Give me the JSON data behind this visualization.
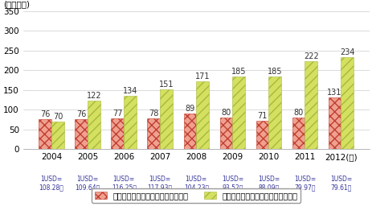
{
  "years": [
    "2004",
    "2005",
    "2006",
    "2007",
    "2008",
    "2009",
    "2010",
    "2011",
    "2012(年)"
  ],
  "japan_values": [
    76,
    76,
    77,
    78,
    89,
    80,
    71,
    80,
    131
  ],
  "korea_values": [
    70,
    122,
    134,
    151,
    171,
    185,
    185,
    222,
    234
  ],
  "exchange_rates": [
    "1USD=\n108.28円",
    "1USD=\n109.64円",
    "1USD=\n116.25円",
    "1USD=\n117.93円",
    "1USD=\n104.23円",
    "1USD=\n93.52円",
    "1USD=\n88.09円",
    "1USD=\n79.97円",
    "1USD=\n79.61円"
  ],
  "japan_color": "#e8756a",
  "korea_color": "#c8d45a",
  "japan_hatch": "///",
  "ylabel": "(百万ドル)",
  "ylim": [
    0,
    350
  ],
  "yticks": [
    0,
    50,
    100,
    150,
    200,
    250,
    300,
    350
  ],
  "legend_japan": "日本の放送コンテンツの海外輸出額",
  "legend_korea": "韓国の放送コンテンツの海外輸出額",
  "bar_width": 0.35,
  "title_fontsize": 9,
  "tick_fontsize": 7.5,
  "value_fontsize": 7,
  "exchange_fontsize": 5.5,
  "legend_fontsize": 7
}
